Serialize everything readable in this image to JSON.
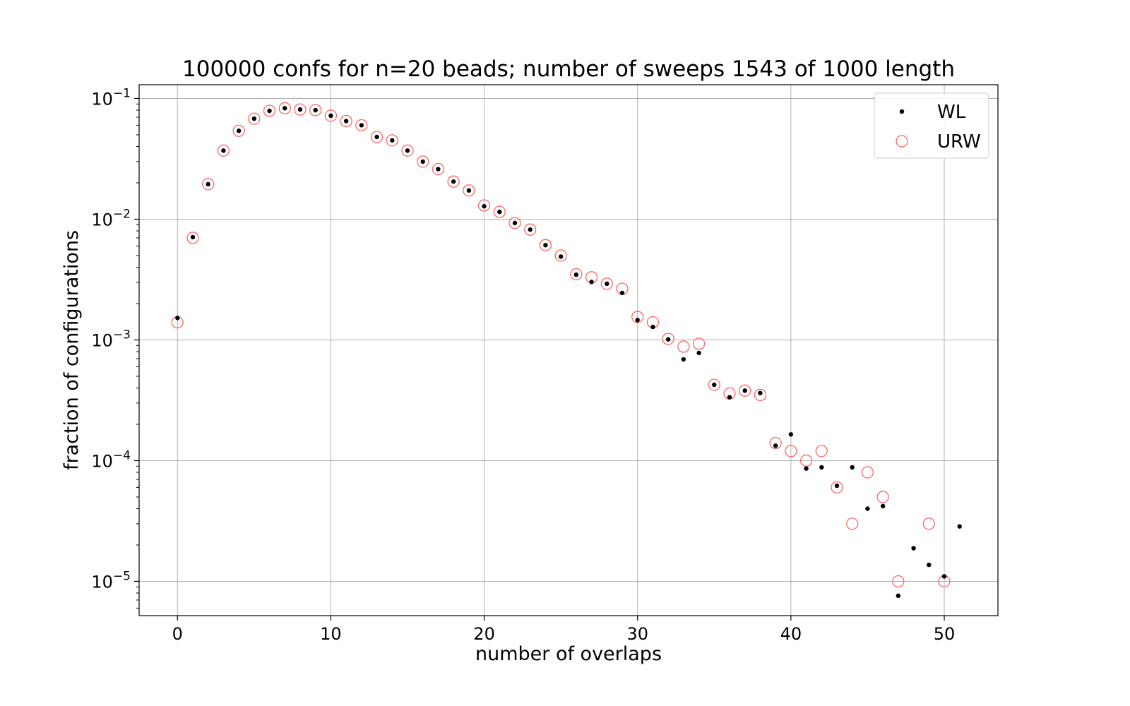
{
  "chart_data": {
    "type": "scatter",
    "title": "100000 confs for n=20 beads; number of sweeps 1543 of 1000 length",
    "xlabel": "number of overlaps",
    "ylabel": "fraction of configurations",
    "yscale": "log",
    "xlim": [
      -2.5,
      53.5
    ],
    "ylim": [
      5.2e-06,
      0.13
    ],
    "grid": true,
    "legend_position": "top-right",
    "xticks": [
      0,
      10,
      20,
      30,
      40,
      50
    ],
    "xtick_labels": [
      "0",
      "10",
      "20",
      "30",
      "40",
      "50"
    ],
    "yticks": [
      {
        "value": 0.1,
        "base": "10",
        "exp": "−1"
      },
      {
        "value": 0.01,
        "base": "10",
        "exp": "−2"
      },
      {
        "value": 0.001,
        "base": "10",
        "exp": "−3"
      },
      {
        "value": 0.0001,
        "base": "10",
        "exp": "−4"
      },
      {
        "value": 1e-05,
        "base": "10",
        "exp": "−5"
      }
    ],
    "series": [
      {
        "name": "WL",
        "marker": "dot",
        "color": "#000000",
        "x": [
          0,
          1,
          2,
          3,
          4,
          5,
          6,
          7,
          8,
          9,
          10,
          11,
          12,
          13,
          14,
          15,
          16,
          17,
          18,
          19,
          20,
          21,
          22,
          23,
          24,
          25,
          26,
          27,
          28,
          29,
          30,
          31,
          32,
          33,
          34,
          35,
          36,
          37,
          38,
          39,
          40,
          41,
          42,
          43,
          44,
          45,
          46,
          47,
          48,
          49,
          50,
          51
        ],
        "y": [
          0.00152,
          0.0071,
          0.0195,
          0.037,
          0.054,
          0.068,
          0.079,
          0.083,
          0.081,
          0.08,
          0.072,
          0.065,
          0.06,
          0.048,
          0.045,
          0.037,
          0.03,
          0.026,
          0.0205,
          0.0173,
          0.0128,
          0.0115,
          0.0093,
          0.0082,
          0.0061,
          0.0049,
          0.00347,
          0.00302,
          0.00292,
          0.00245,
          0.00146,
          0.00128,
          0.00101,
          0.00069,
          0.00078,
          0.000425,
          0.000335,
          0.00038,
          0.000363,
          0.000133,
          0.000165,
          8.6e-05,
          8.8e-05,
          6.2e-05,
          8.8e-05,
          4e-05,
          4.2e-05,
          7.6e-06,
          1.88e-05,
          1.37e-05,
          1.1e-05,
          2.85e-05
        ]
      },
      {
        "name": "URW",
        "marker": "open-circle",
        "color": "#ff6464",
        "x": [
          0,
          1,
          2,
          3,
          4,
          5,
          6,
          7,
          8,
          9,
          10,
          11,
          12,
          13,
          14,
          15,
          16,
          17,
          18,
          19,
          20,
          21,
          22,
          23,
          24,
          25,
          26,
          27,
          28,
          29,
          30,
          31,
          32,
          33,
          34,
          35,
          36,
          37,
          38,
          39,
          40,
          41,
          42,
          43,
          44,
          45,
          46,
          47,
          49,
          50
        ],
        "y": [
          0.0014,
          0.007,
          0.0195,
          0.037,
          0.054,
          0.068,
          0.079,
          0.083,
          0.081,
          0.08,
          0.072,
          0.065,
          0.06,
          0.048,
          0.045,
          0.037,
          0.03,
          0.026,
          0.0205,
          0.0173,
          0.013,
          0.0115,
          0.0093,
          0.0082,
          0.0061,
          0.005,
          0.0035,
          0.0033,
          0.00292,
          0.00265,
          0.00155,
          0.0014,
          0.00102,
          0.00088,
          0.00093,
          0.000425,
          0.00036,
          0.00038,
          0.00035,
          0.00014,
          0.00012,
          0.0001,
          0.00012,
          6e-05,
          3e-05,
          8e-05,
          5e-05,
          1e-05,
          3e-05,
          1e-05
        ]
      }
    ]
  }
}
